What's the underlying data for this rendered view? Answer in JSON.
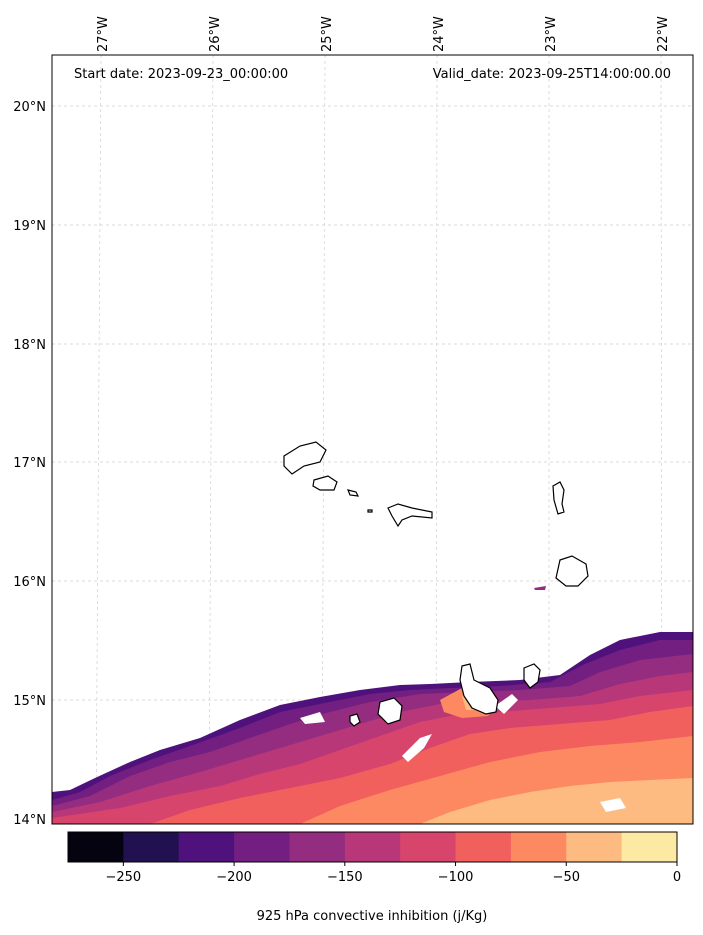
{
  "header": {
    "start_date": "Start date: 2023-09-23_00:00:00",
    "valid_date": "Valid_date: 2023-09-25T14:00:00.00"
  },
  "lon_ticks": [
    "27°W",
    "26°W",
    "25°W",
    "24°W",
    "23°W",
    "22°W"
  ],
  "lat_ticks": [
    "20°N",
    "19°N",
    "18°N",
    "17°N",
    "16°N",
    "15°N",
    "14°N"
  ],
  "colorbar": {
    "label": "925 hPa convective inhibition (j/Kg)",
    "tick_labels": [
      "−250",
      "−200",
      "−150",
      "−100",
      "−50",
      "0"
    ],
    "levels": [
      -275,
      -250,
      -225,
      -200,
      -175,
      -150,
      -125,
      -100,
      -75,
      -50,
      -25,
      0
    ],
    "colors": [
      "#05030f",
      "#221150",
      "#4f117b",
      "#721f81",
      "#942c80",
      "#b73779",
      "#d8456c",
      "#f1605d",
      "#fc8961",
      "#febb81",
      "#fce9a4"
    ]
  },
  "islands": [
    "Santo Antão",
    "São Vicente",
    "Santa Luzia",
    "São Nicolau",
    "Sal",
    "Boa Vista",
    "Maio",
    "Santiago",
    "Fogo",
    "Brava"
  ]
}
